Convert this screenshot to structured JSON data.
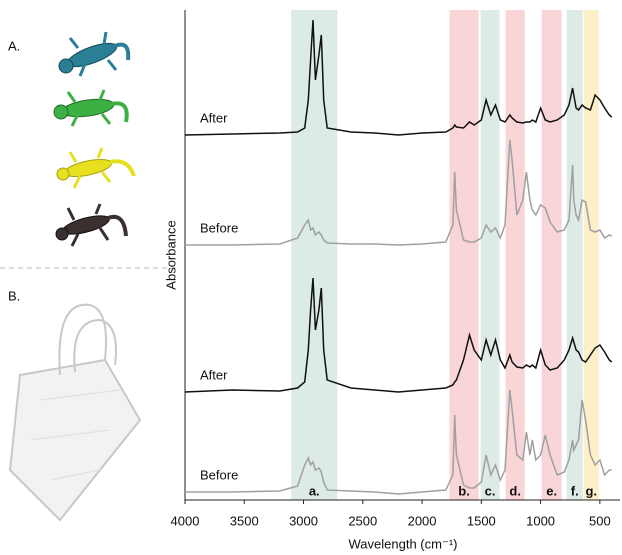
{
  "chart_data": {
    "type": "line",
    "xlabel": "Wavelength (cm⁻¹)",
    "ylabel": "Absorbance",
    "annotations": [
      "A.",
      "B."
    ],
    "xlim": [
      4000,
      330
    ],
    "ylim": [
      0,
      490
    ],
    "xticks": [
      4000,
      3500,
      3000,
      2500,
      2000,
      1500,
      1000,
      500
    ],
    "bands": [
      {
        "label": "a.",
        "range": [
          3104,
          2715
        ],
        "color": "#dcebe6"
      },
      {
        "label": "b.",
        "range": [
          1768,
          1523
        ],
        "color": "#f9d5d8"
      },
      {
        "label": "c.",
        "range": [
          1506,
          1346
        ],
        "color": "#dcebe6"
      },
      {
        "label": "d.",
        "range": [
          1295,
          1134
        ],
        "color": "#f9d5d8"
      },
      {
        "label": "e.",
        "range": [
          991,
          822
        ],
        "color": "#f9d5d8"
      },
      {
        "label": "f.",
        "range": [
          780,
          644
        ],
        "color": "#dcebe6"
      },
      {
        "label": "g.",
        "range": [
          636,
          509
        ],
        "color": "#fdf0c8"
      }
    ],
    "x": [
      4000,
      3600,
      3200,
      3050,
      2990,
      2960,
      2940,
      2920,
      2900,
      2870,
      2850,
      2830,
      2800,
      2600,
      2400,
      2200,
      2000,
      1800,
      1740,
      1725,
      1710,
      1650,
      1600,
      1560,
      1500,
      1460,
      1420,
      1380,
      1340,
      1300,
      1260,
      1240,
      1200,
      1150,
      1120,
      1090,
      1070,
      1040,
      1000,
      960,
      920,
      860,
      800,
      760,
      730,
      720,
      700,
      680,
      650,
      620,
      580,
      540,
      500,
      460,
      420,
      400
    ],
    "series": [
      {
        "name": "After",
        "color": "#111111",
        "values": [
          365,
          366,
          367,
          368,
          372,
          400,
          440,
          480,
          420,
          445,
          465,
          400,
          372,
          368,
          367,
          365,
          367,
          368,
          372,
          375,
          373,
          372,
          378,
          375,
          380,
          400,
          385,
          395,
          380,
          378,
          385,
          382,
          378,
          377,
          378,
          378,
          380,
          378,
          392,
          380,
          378,
          380,
          385,
          395,
          412,
          405,
          392,
          390,
          395,
          392,
          390,
          405,
          400,
          392,
          385,
          383
        ]
      },
      {
        "name": "Before",
        "color": "#a0a0a0",
        "values": [
          255,
          255,
          256,
          262,
          275,
          280,
          270,
          272,
          265,
          268,
          265,
          260,
          257,
          256,
          256,
          255,
          256,
          258,
          275,
          328,
          290,
          260,
          258,
          258,
          262,
          275,
          268,
          272,
          262,
          275,
          360,
          340,
          285,
          300,
          328,
          300,
          290,
          285,
          295,
          292,
          278,
          268,
          270,
          280,
          335,
          300,
          285,
          280,
          300,
          298,
          270,
          268,
          270,
          262,
          265,
          264
        ]
      },
      {
        "name": "After",
        "color": "#111111",
        "values": [
          108,
          110,
          109,
          112,
          118,
          150,
          190,
          222,
          170,
          190,
          212,
          150,
          120,
          112,
          110,
          108,
          110,
          112,
          115,
          118,
          120,
          140,
          165,
          150,
          140,
          160,
          145,
          160,
          140,
          132,
          145,
          138,
          133,
          132,
          135,
          133,
          135,
          132,
          150,
          135,
          130,
          132,
          140,
          150,
          162,
          158,
          150,
          148,
          140,
          138,
          145,
          152,
          155,
          148,
          140,
          138
        ]
      },
      {
        "name": "Before",
        "color": "#a0a0a0",
        "values": [
          8,
          8,
          9,
          14,
          35,
          42,
          35,
          38,
          30,
          32,
          28,
          18,
          10,
          9,
          8,
          6,
          8,
          10,
          25,
          85,
          45,
          15,
          12,
          12,
          18,
          45,
          25,
          35,
          20,
          30,
          110,
          90,
          45,
          40,
          68,
          45,
          60,
          40,
          45,
          65,
          45,
          25,
          28,
          40,
          60,
          50,
          55,
          60,
          100,
          80,
          45,
          35,
          40,
          25,
          30,
          30
        ]
      }
    ]
  }
}
